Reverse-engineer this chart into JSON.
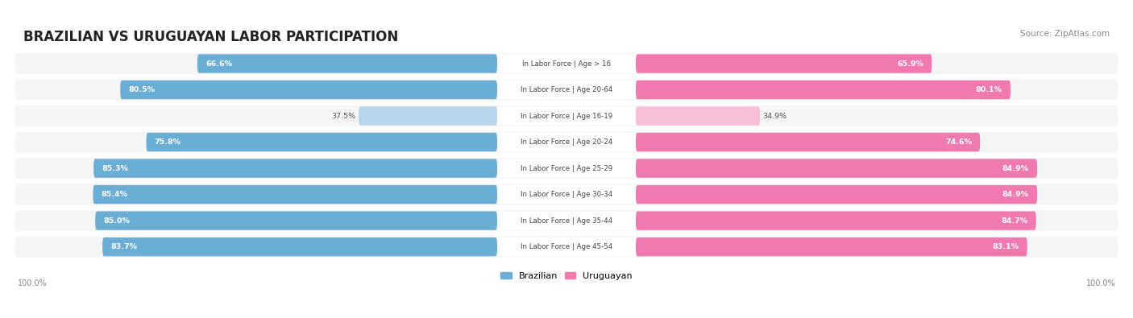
{
  "title": "BRAZILIAN VS URUGUAYAN LABOR PARTICIPATION",
  "source": "Source: ZipAtlas.com",
  "categories": [
    "In Labor Force | Age > 16",
    "In Labor Force | Age 20-64",
    "In Labor Force | Age 16-19",
    "In Labor Force | Age 20-24",
    "In Labor Force | Age 25-29",
    "In Labor Force | Age 30-34",
    "In Labor Force | Age 35-44",
    "In Labor Force | Age 45-54"
  ],
  "brazilian": [
    66.6,
    80.5,
    37.5,
    75.8,
    85.3,
    85.4,
    85.0,
    83.7
  ],
  "uruguayan": [
    65.9,
    80.1,
    34.9,
    74.6,
    84.9,
    84.9,
    84.7,
    83.1
  ],
  "brazilian_color": "#6aaed6",
  "brazilian_color_light": "#b8d4ea",
  "uruguayan_color": "#f07ab0",
  "uruguayan_color_light": "#f8c0d8",
  "bar_bg": "#efefef",
  "row_bg": "#f5f5f5",
  "max_val": 100.0,
  "figsize": [
    14.06,
    3.95
  ],
  "dpi": 100
}
